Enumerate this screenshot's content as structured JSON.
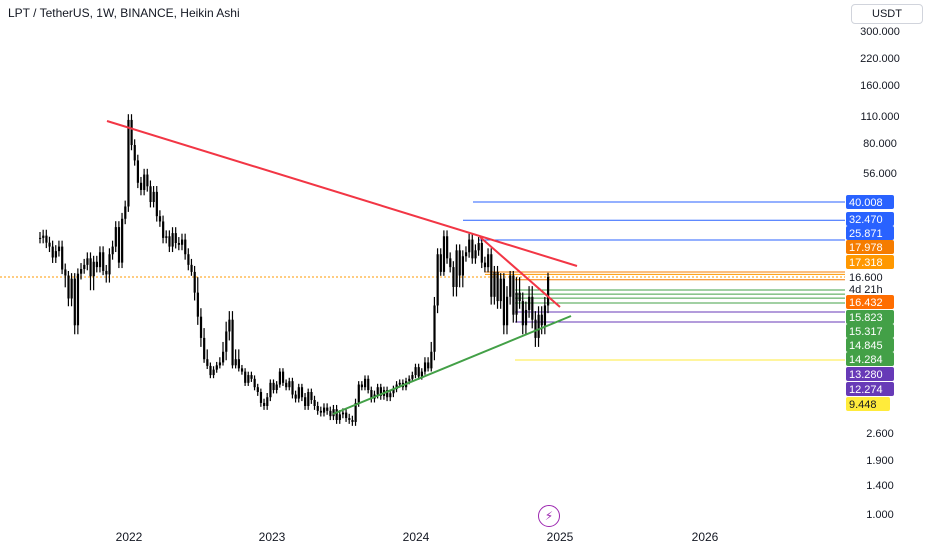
{
  "header": {
    "title": "LPT / TetherUS, 1W, BINANCE, Heikin Ashi",
    "currency_label": "USDT"
  },
  "icons": {
    "flash": "lightning-icon"
  },
  "chart_data": {
    "type": "candlestick",
    "scale": "log",
    "grid": false,
    "y_ticks": [
      "300.000",
      "220.000",
      "160.000",
      "110.000",
      "80.000",
      "56.000",
      "2.600",
      "1.900",
      "1.400",
      "1.000"
    ],
    "x_ticks": [
      "2022",
      "2023",
      "2024",
      "2025",
      "2026"
    ],
    "price_tags": [
      {
        "label": "40.008",
        "color": "#2962ff",
        "text_color": "#ffffff"
      },
      {
        "label": "32.470",
        "color": "#2962ff",
        "text_color": "#ffffff"
      },
      {
        "label": "25.871",
        "color": "#2962ff",
        "text_color": "#ffffff"
      },
      {
        "label": "17.978",
        "color": "#f57c00",
        "text_color": "#ffffff"
      },
      {
        "label": "17.318",
        "color": "#ff9800",
        "text_color": "#ffffff"
      },
      {
        "label": "16.600",
        "color": "#ffffff",
        "text_color": "#131722"
      },
      {
        "label": "4d 21h",
        "color": "#ffffff",
        "text_color": "#131722"
      },
      {
        "label": "16.432",
        "color": "#ff6d00",
        "text_color": "#ffffff"
      },
      {
        "label": "15.823",
        "color": "#43a047",
        "text_color": "#ffffff"
      },
      {
        "label": "15.317",
        "color": "#43a047",
        "text_color": "#ffffff"
      },
      {
        "label": "14.845",
        "color": "#43a047",
        "text_color": "#ffffff"
      },
      {
        "label": "14.284",
        "color": "#43a047",
        "text_color": "#ffffff"
      },
      {
        "label": "13.280",
        "color": "#673ab7",
        "text_color": "#ffffff"
      },
      {
        "label": "12.274",
        "color": "#673ab7",
        "text_color": "#ffffff"
      },
      {
        "label": "9.448",
        "color": "#ffeb3b",
        "text_color": "#131722"
      }
    ],
    "trendlines": [
      {
        "name": "upper-resistance",
        "color": "#f23645"
      },
      {
        "name": "short-resistance",
        "color": "#f23645"
      },
      {
        "name": "rising-support",
        "color": "#43a047"
      }
    ],
    "horizontal_levels": [
      {
        "value": 40.008,
        "color": "#2962ff"
      },
      {
        "value": 32.47,
        "color": "#2962ff"
      },
      {
        "value": 25.871,
        "color": "#2962ff"
      },
      {
        "value": 17.978,
        "color": "#f57c00"
      },
      {
        "value": 17.318,
        "color": "#ff9800"
      },
      {
        "value": 16.432,
        "color": "#f57c00"
      },
      {
        "value": 15.823,
        "color": "#43a047"
      },
      {
        "value": 15.317,
        "color": "#43a047"
      },
      {
        "value": 14.845,
        "color": "#43a047"
      },
      {
        "value": 14.284,
        "color": "#43a047"
      },
      {
        "value": 13.28,
        "color": "#673ab7"
      },
      {
        "value": 12.274,
        "color": "#673ab7"
      },
      {
        "value": 9.448,
        "color": "#ffeb3b"
      }
    ],
    "current_price": 16.6,
    "bar_close_countdown": "4d 21h",
    "series": [
      {
        "name": "",
        "values": [
          26.5,
          27.2,
          25.1,
          24.0,
          21.2,
          22.8,
          24.0,
          18.5,
          17.0,
          14.8,
          16.5,
          12.0,
          17.5,
          18.6,
          19.5,
          21.0,
          16.8,
          20.2,
          19.0,
          22.5,
          18.2,
          17.3,
          22.0,
          24.0,
          30.0,
          20.0,
          33.0,
          38.0,
          105.0,
          78.0,
          65.0,
          50.0,
          46.0,
          55.0,
          48.0,
          40.0,
          45.0,
          34.0,
          32.0,
          26.5,
          27.0,
          24.0,
          28.0,
          25.0,
          24.5,
          26.0,
          22.0,
          19.5,
          18.0,
          15.5,
          12.8,
          11.0,
          9.5,
          8.4,
          7.0,
          7.8,
          8.5,
          9.0,
          10.0,
          11.5,
          12.5,
          8.5,
          9.5,
          8.0,
          7.5,
          6.0,
          7.0,
          6.5,
          5.5,
          5.0,
          4.2,
          4.0,
          4.6,
          6.0,
          5.2,
          5.8,
          7.5,
          6.0,
          5.5,
          6.2,
          4.8,
          4.5,
          5.5,
          4.6,
          4.0,
          5.0,
          4.4,
          4.0,
          3.7,
          3.6,
          3.9,
          3.7,
          3.4,
          3.8,
          3.2,
          3.5,
          3.6,
          3.3,
          3.2,
          3.1,
          4.2,
          5.8,
          5.5,
          6.5,
          5.2,
          4.5,
          4.8,
          5.5,
          4.7,
          5.2,
          4.6,
          4.9,
          5.3,
          5.8,
          6.0,
          5.5,
          6.2,
          6.5,
          7.0,
          8.2,
          6.8,
          7.5,
          9.0,
          8.0,
          10.0,
          14.0,
          22.0,
          18.0,
          27.0,
          21.0,
          19.0,
          16.0,
          23.0,
          17.0,
          21.5,
          22.5,
          26.0,
          21.0,
          23.0,
          25.0,
          20.0,
          19.0,
          22.0,
          15.0,
          18.0,
          14.5,
          16.5,
          12.0,
          15.0,
          17.0,
          13.0,
          15.5,
          14.5,
          12.0,
          13.5,
          15.0,
          12.5,
          11.0,
          13.0,
          12.0,
          14.0,
          16.6
        ]
      }
    ]
  }
}
